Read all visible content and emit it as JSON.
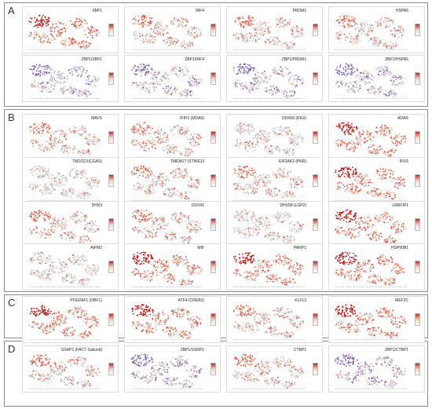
{
  "panels": [
    {
      "letter": "A",
      "top": 3,
      "height": 133
    },
    {
      "letter": "B",
      "top": 139,
      "height": 233
    },
    {
      "letter": "C",
      "top": 375,
      "height": 56
    },
    {
      "letter": "D",
      "top": 434,
      "height": 84
    }
  ],
  "letter_C2": "C",
  "tiles": [
    {
      "row": 0,
      "col": 0,
      "label": "XBP1",
      "style": "red-high"
    },
    {
      "row": 0,
      "col": 1,
      "label": "IRF4",
      "style": "red"
    },
    {
      "row": 0,
      "col": 2,
      "label": "PRDM1",
      "style": "red"
    },
    {
      "row": 0,
      "col": 3,
      "label": "HSPA5",
      "style": "red"
    },
    {
      "row": 1,
      "col": 0,
      "label": "ZBP1/XBP1",
      "style": "blend"
    },
    {
      "row": 1,
      "col": 1,
      "label": "ZBP1/IRF4",
      "style": "blend"
    },
    {
      "row": 1,
      "col": 2,
      "label": "ZBP1/PRDM1",
      "style": "blend"
    },
    {
      "row": 1,
      "col": 3,
      "label": "ZBP1/HSPA5",
      "style": "blend"
    },
    {
      "row": 2,
      "col": 0,
      "label": "MAVS",
      "style": "red"
    },
    {
      "row": 2,
      "col": 1,
      "label": "IFIH1 (MDA5)",
      "style": "red"
    },
    {
      "row": 2,
      "col": 2,
      "label": "DDX58 (RIGI)",
      "style": "light"
    },
    {
      "row": 2,
      "col": 3,
      "label": "ADAR",
      "style": "red-high"
    },
    {
      "row": 3,
      "col": 0,
      "label": "TM2/1D1(CGAS)",
      "style": "light"
    },
    {
      "row": 3,
      "col": 1,
      "label": "TMEM17 (STING)3",
      "style": "red"
    },
    {
      "row": 3,
      "col": 2,
      "label": "EIF2AK2 (PKR)",
      "style": "red"
    },
    {
      "row": 3,
      "col": 3,
      "label": "IFI16",
      "style": "red-high"
    },
    {
      "row": 4,
      "col": 0,
      "label": "DHX9",
      "style": "red"
    },
    {
      "row": 4,
      "col": 1,
      "label": "DDX41",
      "style": "red"
    },
    {
      "row": 4,
      "col": 2,
      "label": "DHX58 (LGP2)",
      "style": "light"
    },
    {
      "row": 4,
      "col": 3,
      "label": "LRRFIP1",
      "style": "red-high"
    },
    {
      "row": 5,
      "col": 0,
      "label": "AIFM2",
      "style": "light"
    },
    {
      "row": 5,
      "col": 1,
      "label": "MIF",
      "style": "red-high"
    },
    {
      "row": 5,
      "col": 2,
      "label": "PARP1",
      "style": "red-high"
    },
    {
      "row": 5,
      "col": 3,
      "label": "HSP90B1",
      "style": "red-high"
    },
    {
      "row": 6,
      "col": 0,
      "label": "POU2AF1 (OBF1)",
      "style": "red-high"
    },
    {
      "row": 6,
      "col": 1,
      "label": "ATF4 (CREB2)",
      "style": "red-high"
    },
    {
      "row": 6,
      "col": 2,
      "label": "KLF13",
      "style": "red"
    },
    {
      "row": 6,
      "col": 3,
      "label": "MEF2C",
      "style": "red-high"
    },
    {
      "row": 7,
      "col": 0,
      "label": "SSRP1 (FACT Subunit)",
      "style": "red"
    },
    {
      "row": 7,
      "col": 1,
      "label": "ZBP1/SSRP1",
      "style": "blend"
    },
    {
      "row": 7,
      "col": 2,
      "label": "CTBP1",
      "style": "red"
    },
    {
      "row": 7,
      "col": 3,
      "label": "ZBP1/CTBP1",
      "style": "blend"
    }
  ],
  "colors": {
    "red_dark": "#c8140f",
    "red_mid": "#e2553c",
    "red_light": "#f0a58c",
    "grey": "#c7c7c7",
    "purple": "#6f4fb3",
    "purple_light": "#a996d8"
  }
}
